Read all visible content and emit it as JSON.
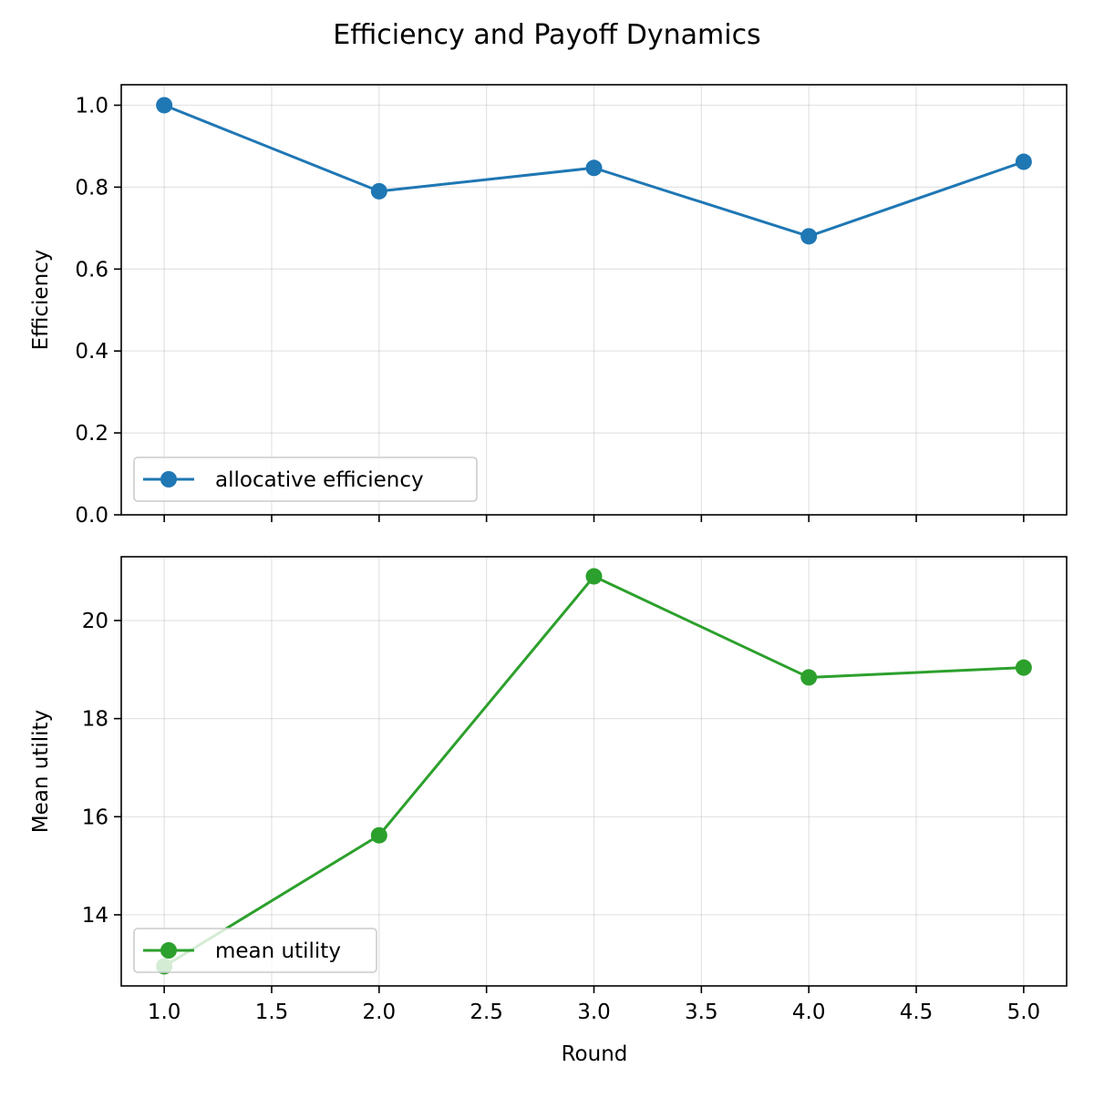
{
  "chart_data": {
    "title": "Efficiency and Payoff Dynamics",
    "xlabel": "Round",
    "x": [
      1,
      2,
      3,
      4,
      5
    ],
    "xlim": [
      0.8,
      5.2
    ],
    "x_ticks": [
      1.0,
      1.5,
      2.0,
      2.5,
      3.0,
      3.5,
      4.0,
      4.5,
      5.0
    ],
    "x_tick_labels": [
      "1.0",
      "1.5",
      "2.0",
      "2.5",
      "3.0",
      "3.5",
      "4.0",
      "4.5",
      "5.0"
    ],
    "grid": true,
    "panels": [
      {
        "type": "line",
        "ylabel": "Efficiency",
        "ylim": [
          0.0,
          1.05
        ],
        "y_ticks": [
          0.0,
          0.2,
          0.4,
          0.6,
          0.8,
          1.0
        ],
        "y_tick_labels": [
          "0.0",
          "0.2",
          "0.4",
          "0.6",
          "0.8",
          "1.0"
        ],
        "legend_position": "lower-left",
        "show_x_tick_labels": false,
        "series": [
          {
            "name": "allocative efficiency",
            "color": "#1f77b4",
            "marker": "circle",
            "values": [
              1.0,
              0.79,
              0.847,
              0.68,
              0.862
            ]
          }
        ]
      },
      {
        "type": "line",
        "ylabel": "Mean utility",
        "ylim": [
          12.55,
          21.3
        ],
        "y_ticks": [
          14,
          16,
          18,
          20
        ],
        "y_tick_labels": [
          "14",
          "16",
          "18",
          "20"
        ],
        "legend_position": "lower-left",
        "show_x_tick_labels": true,
        "series": [
          {
            "name": "mean utility",
            "color": "#2ca02c",
            "marker": "circle",
            "values": [
              12.95,
              15.62,
              20.9,
              18.84,
              19.04
            ]
          }
        ]
      }
    ]
  }
}
